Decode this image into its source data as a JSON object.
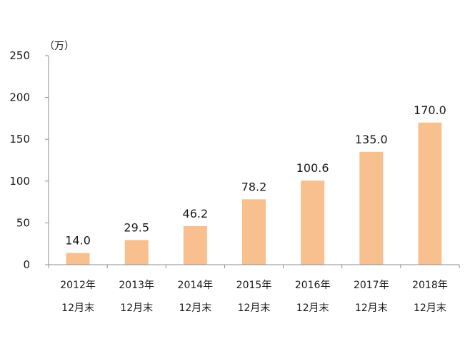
{
  "chart_data": {
    "type": "bar",
    "categories": [
      [
        "2012年",
        "12月末"
      ],
      [
        "2013年",
        "12月末"
      ],
      [
        "2014年",
        "12月末"
      ],
      [
        "2015年",
        "12月末"
      ],
      [
        "2016年",
        "12月末"
      ],
      [
        "2017年",
        "12月末"
      ],
      [
        "2018年",
        "12月末"
      ]
    ],
    "values": [
      14.0,
      29.5,
      46.2,
      78.2,
      100.6,
      135.0,
      170.0
    ],
    "data_labels": [
      "14.0",
      "29.5",
      "46.2",
      "78.2",
      "100.6",
      "135.0",
      "170.0"
    ],
    "unit_label": "（万）",
    "ylim": [
      0,
      250
    ],
    "yticks": [
      0,
      50,
      100,
      150,
      200,
      250
    ],
    "grid": false,
    "bar_color": "#F9C08F",
    "axis_color": "#8C8C8C",
    "text_color": "#1A1A1A"
  }
}
